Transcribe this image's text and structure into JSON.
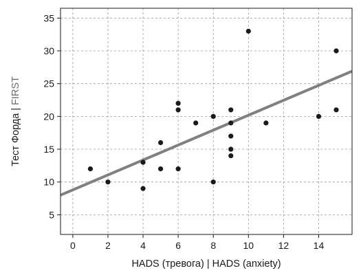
{
  "chart_data": {
    "type": "scatter",
    "xlabel": "HADS (тревога) | HADS (anxiety)",
    "ylabel_main": "Тест Форда |",
    "ylabel_secondary": " FIRST",
    "xlim": [
      -0.7,
      15.9
    ],
    "ylim": [
      2,
      36.5
    ],
    "x_ticks": [
      0,
      2,
      4,
      6,
      8,
      10,
      12,
      14
    ],
    "y_ticks": [
      5,
      10,
      15,
      20,
      25,
      30,
      35
    ],
    "grid": true,
    "series": [
      {
        "points": [
          {
            "x": 1,
            "y": 12
          },
          {
            "x": 2,
            "y": 10
          },
          {
            "x": 4,
            "y": 13
          },
          {
            "x": 4,
            "y": 9
          },
          {
            "x": 5,
            "y": 16
          },
          {
            "x": 5,
            "y": 12
          },
          {
            "x": 6,
            "y": 22
          },
          {
            "x": 6,
            "y": 21
          },
          {
            "x": 6,
            "y": 12
          },
          {
            "x": 7,
            "y": 19
          },
          {
            "x": 8,
            "y": 20
          },
          {
            "x": 8,
            "y": 10
          },
          {
            "x": 9,
            "y": 21
          },
          {
            "x": 9,
            "y": 19
          },
          {
            "x": 9,
            "y": 17
          },
          {
            "x": 9,
            "y": 15
          },
          {
            "x": 9,
            "y": 14
          },
          {
            "x": 10,
            "y": 33
          },
          {
            "x": 11,
            "y": 19
          },
          {
            "x": 14,
            "y": 20
          },
          {
            "x": 15,
            "y": 30
          },
          {
            "x": 15,
            "y": 21
          }
        ]
      }
    ],
    "trendline": {
      "x": [
        -0.7,
        15.9
      ],
      "y": [
        8.0,
        26.9
      ]
    },
    "colors": {
      "points": "#1a1a1a",
      "trendline": "#808080",
      "grid": "#9a9a9a"
    }
  }
}
